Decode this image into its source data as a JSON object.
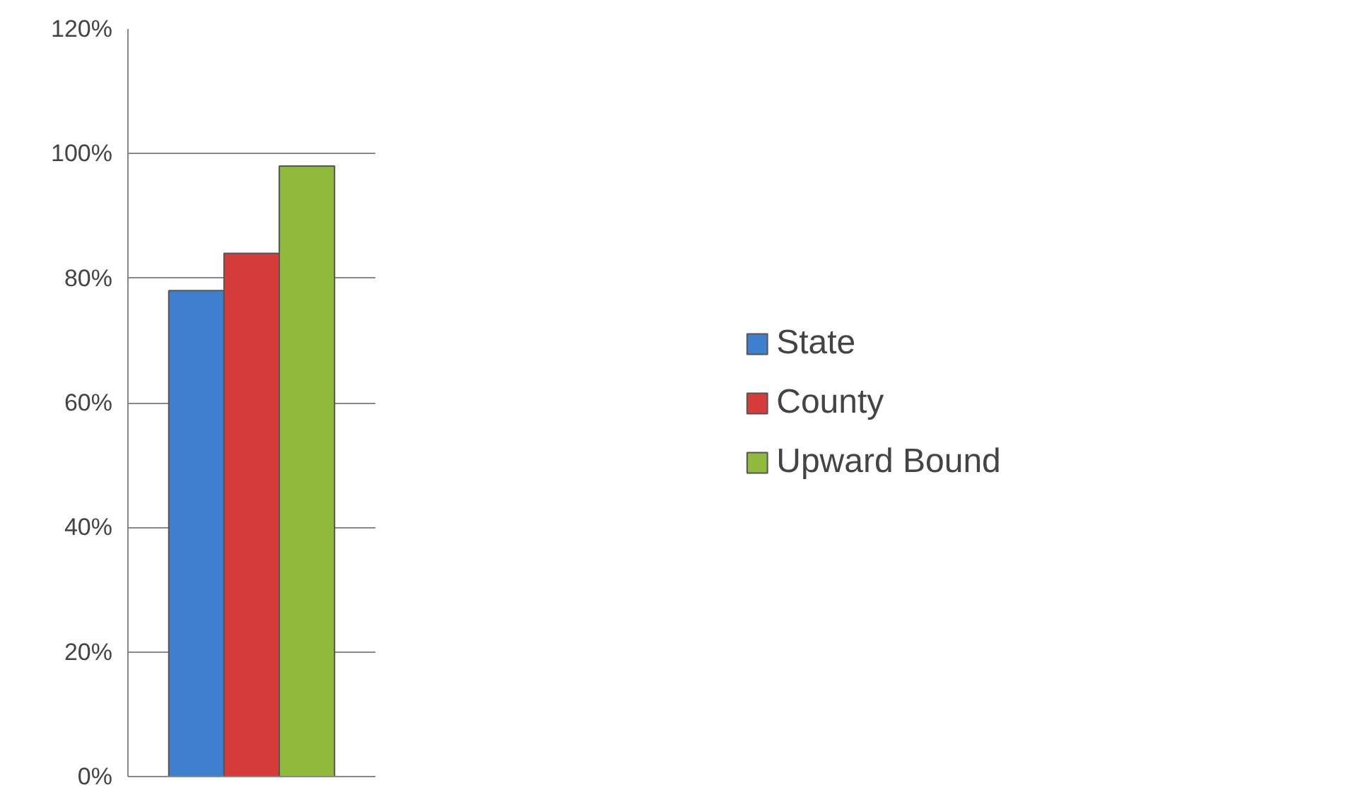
{
  "chart_data": {
    "type": "bar",
    "categories": [
      null
    ],
    "series": [
      {
        "name": "State",
        "color": "#3f7fd0",
        "values": [
          78
        ]
      },
      {
        "name": "County",
        "color": "#d63c3a",
        "values": [
          84
        ]
      },
      {
        "name": "Upward Bound",
        "color": "#8fba3c",
        "values": [
          98
        ]
      }
    ],
    "ylim": [
      0,
      120
    ],
    "yticks": [
      {
        "value": 0,
        "label": "0%"
      },
      {
        "value": 20,
        "label": "20%"
      },
      {
        "value": 40,
        "label": "40%"
      },
      {
        "value": 60,
        "label": "60%"
      },
      {
        "value": 80,
        "label": "80%"
      },
      {
        "value": 100,
        "label": "100%"
      },
      {
        "value": 120,
        "label": "120%"
      }
    ],
    "grid": "y",
    "legend": "right"
  }
}
